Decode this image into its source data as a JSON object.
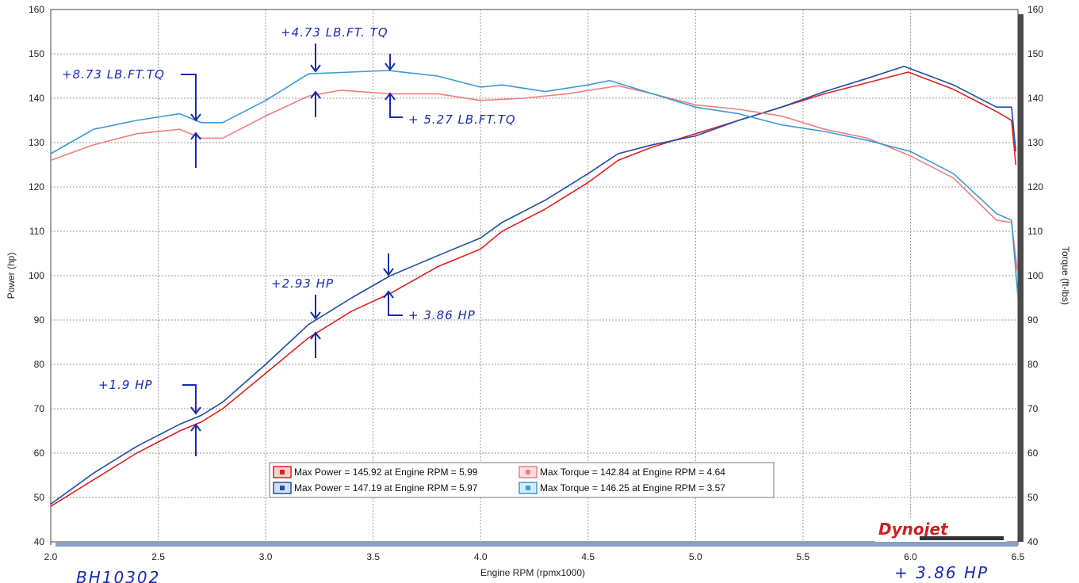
{
  "chart_data": {
    "type": "line",
    "xlabel": "Engine RPM (rpmx1000)",
    "ylabel_left": "Power (hp)",
    "ylabel_right": "Torque (ft-lbs)",
    "xlim": [
      2.0,
      6.5
    ],
    "ylim": [
      40,
      160
    ],
    "xticks": [
      "2.0",
      "2.5",
      "3.0",
      "3.5",
      "4.0",
      "4.5",
      "5.0",
      "5.5",
      "6.0",
      "6.5"
    ],
    "yticks": [
      "40",
      "50",
      "60",
      "70",
      "80",
      "90",
      "100",
      "110",
      "120",
      "130",
      "140",
      "150",
      "160"
    ],
    "grid": true,
    "colors": {
      "red": "#e02020",
      "blue": "#1f4fa8",
      "pink": "#ee7f7f",
      "lightblue": "#3a9ad8",
      "annotation": "#1b2bb0"
    },
    "series": [
      {
        "color_key": "red",
        "axis": "left",
        "points": [
          [
            2.0,
            48
          ],
          [
            2.2,
            54
          ],
          [
            2.4,
            60
          ],
          [
            2.6,
            65
          ],
          [
            2.7,
            67
          ],
          [
            2.8,
            70
          ],
          [
            3.0,
            78
          ],
          [
            3.2,
            86
          ],
          [
            3.4,
            92
          ],
          [
            3.58,
            96
          ],
          [
            3.8,
            102
          ],
          [
            4.0,
            106
          ],
          [
            4.1,
            110
          ],
          [
            4.3,
            115
          ],
          [
            4.5,
            121
          ],
          [
            4.64,
            126
          ],
          [
            4.8,
            129
          ],
          [
            5.0,
            132
          ],
          [
            5.2,
            135
          ],
          [
            5.4,
            138
          ],
          [
            5.6,
            141
          ],
          [
            5.8,
            143.5
          ],
          [
            5.99,
            145.9
          ],
          [
            6.2,
            142
          ],
          [
            6.4,
            137
          ],
          [
            6.47,
            135
          ],
          [
            6.49,
            125
          ]
        ]
      },
      {
        "color_key": "blue",
        "axis": "left",
        "points": [
          [
            2.0,
            48.5
          ],
          [
            2.2,
            55.5
          ],
          [
            2.4,
            61.5
          ],
          [
            2.6,
            66.5
          ],
          [
            2.7,
            68.5
          ],
          [
            2.8,
            71.5
          ],
          [
            3.0,
            80
          ],
          [
            3.2,
            89
          ],
          [
            3.4,
            95
          ],
          [
            3.58,
            100
          ],
          [
            3.8,
            104.5
          ],
          [
            4.0,
            108.5
          ],
          [
            4.1,
            112
          ],
          [
            4.3,
            117
          ],
          [
            4.5,
            123
          ],
          [
            4.64,
            127.5
          ],
          [
            4.8,
            129.5
          ],
          [
            5.0,
            131.5
          ],
          [
            5.2,
            135
          ],
          [
            5.4,
            138
          ],
          [
            5.6,
            141.5
          ],
          [
            5.8,
            144.5
          ],
          [
            5.97,
            147.2
          ],
          [
            6.2,
            143
          ],
          [
            6.4,
            138
          ],
          [
            6.47,
            138
          ],
          [
            6.49,
            128
          ]
        ]
      },
      {
        "color_key": "pink",
        "axis": "right",
        "points": [
          [
            2.0,
            126
          ],
          [
            2.2,
            129.5
          ],
          [
            2.4,
            132
          ],
          [
            2.6,
            133
          ],
          [
            2.7,
            131
          ],
          [
            2.8,
            131
          ],
          [
            3.0,
            136
          ],
          [
            3.2,
            140.5
          ],
          [
            3.35,
            141.8
          ],
          [
            3.58,
            141
          ],
          [
            3.8,
            141
          ],
          [
            4.0,
            139.5
          ],
          [
            4.2,
            140
          ],
          [
            4.4,
            141
          ],
          [
            4.64,
            142.8
          ],
          [
            4.8,
            141
          ],
          [
            5.0,
            138.5
          ],
          [
            5.2,
            137.5
          ],
          [
            5.4,
            136
          ],
          [
            5.6,
            133
          ],
          [
            5.8,
            131
          ],
          [
            6.0,
            127
          ],
          [
            6.2,
            122
          ],
          [
            6.4,
            112.5
          ],
          [
            6.47,
            112
          ],
          [
            6.5,
            100
          ]
        ]
      },
      {
        "color_key": "lightblue",
        "axis": "right",
        "points": [
          [
            2.0,
            127.5
          ],
          [
            2.2,
            133
          ],
          [
            2.4,
            135
          ],
          [
            2.6,
            136.5
          ],
          [
            2.7,
            134.5
          ],
          [
            2.8,
            134.5
          ],
          [
            3.0,
            139.5
          ],
          [
            3.2,
            145.5
          ],
          [
            3.35,
            145.8
          ],
          [
            3.57,
            146.25
          ],
          [
            3.8,
            145
          ],
          [
            4.0,
            142.5
          ],
          [
            4.1,
            143
          ],
          [
            4.3,
            141.5
          ],
          [
            4.5,
            143
          ],
          [
            4.6,
            144
          ],
          [
            4.8,
            141
          ],
          [
            5.0,
            138
          ],
          [
            5.2,
            136.5
          ],
          [
            5.4,
            134
          ],
          [
            5.6,
            132.5
          ],
          [
            5.8,
            130.5
          ],
          [
            6.0,
            128
          ],
          [
            6.2,
            123
          ],
          [
            6.4,
            114
          ],
          [
            6.47,
            112.5
          ],
          [
            6.5,
            95
          ]
        ]
      }
    ],
    "legend": [
      {
        "color_key": "red",
        "label": "Max Power = 145.92 at Engine RPM = 5.99"
      },
      {
        "color_key": "pink",
        "label": "Max Torque = 142.84 at Engine RPM = 4.64"
      },
      {
        "color_key": "blue",
        "label": "Max Power = 147.19 at Engine RPM = 5.97"
      },
      {
        "color_key": "lightblue",
        "label": "Max Torque = 146.25 at Engine RPM = 3.57"
      }
    ],
    "annotations": [
      {
        "text": "+8.73 LB.FT.TQ"
      },
      {
        "text": "+4.73 LB.FT. TQ"
      },
      {
        "text": "+ 5.27 LB.FT.TQ"
      },
      {
        "text": "+2.93 HP"
      },
      {
        "text": "+ 3.86 HP"
      },
      {
        "text": "+1.9 HP"
      },
      {
        "text": "BH10302"
      },
      {
        "text": "+ 3.86 HP"
      }
    ],
    "logo": "Dynojet"
  }
}
